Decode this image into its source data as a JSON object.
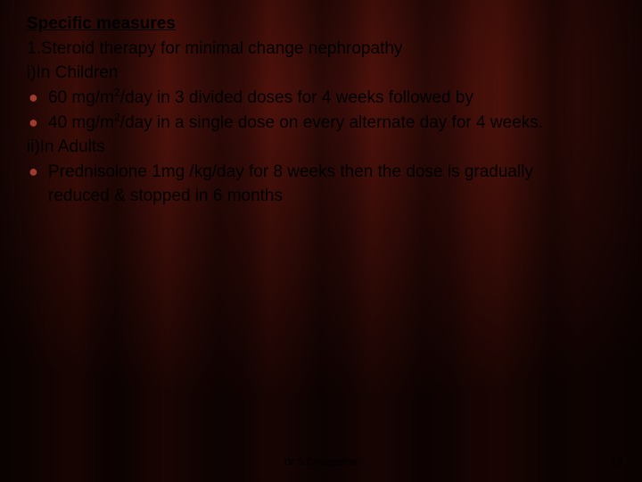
{
  "slide": {
    "heading": "Specific measures",
    "line1": "1.Steroid therapy for minimal change nephropathy",
    "line2": "i)In Children",
    "bullet1_pre": " 60 mg/m",
    "bullet1_sup": "2",
    "bullet1_post": "/day in 3 divided doses for 4 weeks followed by",
    "bullet2_pre": "40 mg/m",
    "bullet2_sup": "2",
    "bullet2_post": "/day in a single dose on every alternate day for 4 weeks.",
    "line3": "ii)In Adults",
    "bullet3": "Prednisolone  1mg /kg/day for 8 weeks then the dose is gradually",
    "bullet3b": "reduced & stopped in 6 months",
    "bullet_glyph": "●"
  },
  "footer": {
    "author": "Dr S Chakradhar",
    "page": "13"
  },
  "style": {
    "text_color": "#000000",
    "bullet_color": "#9e3b2e",
    "body_fontsize": 19,
    "footer_fontsize": 11,
    "background_base": "#3a110c"
  }
}
